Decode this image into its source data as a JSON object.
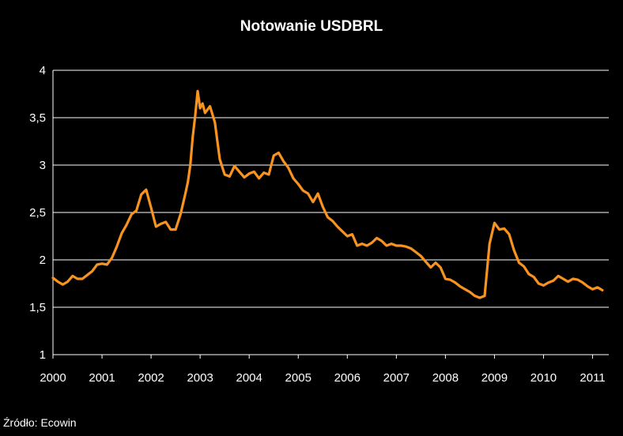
{
  "chart_data": {
    "type": "line",
    "title": "Notowanie USDBRL",
    "xlabel": "",
    "ylabel": "",
    "source": "Źródło: Ecowin",
    "xlim": [
      2000,
      2011.33
    ],
    "ylim": [
      1,
      4
    ],
    "yticks": [
      1,
      1.5,
      2,
      2.5,
      3,
      3.5,
      4
    ],
    "ytick_labels": [
      "1",
      "1,5",
      "2",
      "2,5",
      "3",
      "3,5",
      "4"
    ],
    "xticks": [
      2000,
      2001,
      2002,
      2003,
      2004,
      2005,
      2006,
      2007,
      2008,
      2009,
      2010,
      2011
    ],
    "xtick_labels": [
      "2000",
      "2001",
      "2002",
      "2003",
      "2004",
      "2005",
      "2006",
      "2007",
      "2008",
      "2009",
      "2010",
      "2011"
    ],
    "grid": true,
    "line_color": "#f7931e",
    "background": "#000000",
    "series": [
      {
        "x": [
          2000.0,
          2000.1,
          2000.2,
          2000.3,
          2000.4,
          2000.5,
          2000.6,
          2000.7,
          2000.8,
          2000.9,
          2001.0,
          2001.1,
          2001.2,
          2001.3,
          2001.4,
          2001.5,
          2001.6,
          2001.7,
          2001.8,
          2001.9,
          2002.0,
          2002.1,
          2002.2,
          2002.3,
          2002.4,
          2002.5,
          2002.6,
          2002.7,
          2002.75,
          2002.8,
          2002.85,
          2002.9,
          2002.95,
          2003.0,
          2003.05,
          2003.1,
          2003.2,
          2003.3,
          2003.4,
          2003.5,
          2003.6,
          2003.7,
          2003.8,
          2003.9,
          2004.0,
          2004.1,
          2004.2,
          2004.3,
          2004.4,
          2004.5,
          2004.6,
          2004.7,
          2004.8,
          2004.9,
          2005.0,
          2005.1,
          2005.2,
          2005.3,
          2005.4,
          2005.5,
          2005.6,
          2005.7,
          2005.8,
          2005.9,
          2006.0,
          2006.1,
          2006.2,
          2006.3,
          2006.4,
          2006.5,
          2006.6,
          2006.7,
          2006.8,
          2006.9,
          2007.0,
          2007.1,
          2007.2,
          2007.3,
          2007.4,
          2007.5,
          2007.6,
          2007.7,
          2007.8,
          2007.9,
          2008.0,
          2008.1,
          2008.2,
          2008.3,
          2008.4,
          2008.5,
          2008.6,
          2008.7,
          2008.8,
          2008.9,
          2009.0,
          2009.1,
          2009.2,
          2009.3,
          2009.4,
          2009.5,
          2009.6,
          2009.7,
          2009.8,
          2009.9,
          2010.0,
          2010.1,
          2010.2,
          2010.3,
          2010.4,
          2010.5,
          2010.6,
          2010.7,
          2010.8,
          2010.9,
          2011.0,
          2011.1,
          2011.2
        ],
        "values": [
          1.81,
          1.77,
          1.74,
          1.77,
          1.83,
          1.8,
          1.8,
          1.84,
          1.88,
          1.95,
          1.96,
          1.95,
          2.02,
          2.14,
          2.28,
          2.37,
          2.48,
          2.52,
          2.69,
          2.74,
          2.55,
          2.35,
          2.38,
          2.4,
          2.32,
          2.32,
          2.48,
          2.7,
          2.82,
          3.0,
          3.3,
          3.52,
          3.78,
          3.6,
          3.65,
          3.55,
          3.62,
          3.45,
          3.06,
          2.9,
          2.88,
          2.99,
          2.93,
          2.87,
          2.91,
          2.93,
          2.86,
          2.92,
          2.9,
          3.1,
          3.13,
          3.04,
          2.97,
          2.86,
          2.8,
          2.73,
          2.7,
          2.61,
          2.7,
          2.56,
          2.45,
          2.41,
          2.35,
          2.3,
          2.25,
          2.27,
          2.15,
          2.17,
          2.15,
          2.18,
          2.23,
          2.2,
          2.15,
          2.17,
          2.15,
          2.15,
          2.14,
          2.12,
          2.08,
          2.04,
          1.98,
          1.92,
          1.97,
          1.92,
          1.8,
          1.79,
          1.76,
          1.72,
          1.69,
          1.66,
          1.62,
          1.6,
          1.62,
          2.17,
          2.39,
          2.32,
          2.33,
          2.27,
          2.1,
          1.97,
          1.93,
          1.85,
          1.82,
          1.75,
          1.73,
          1.76,
          1.78,
          1.83,
          1.8,
          1.77,
          1.8,
          1.79,
          1.76,
          1.72,
          1.69,
          1.71,
          1.68
        ]
      }
    ]
  }
}
